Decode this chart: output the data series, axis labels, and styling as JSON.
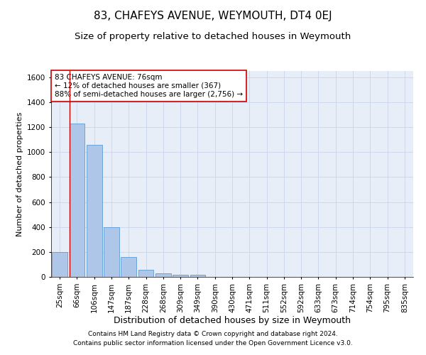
{
  "title": "83, CHAFEYS AVENUE, WEYMOUTH, DT4 0EJ",
  "subtitle": "Size of property relative to detached houses in Weymouth",
  "xlabel": "Distribution of detached houses by size in Weymouth",
  "ylabel": "Number of detached properties",
  "categories": [
    "25sqm",
    "66sqm",
    "106sqm",
    "147sqm",
    "187sqm",
    "228sqm",
    "268sqm",
    "309sqm",
    "349sqm",
    "390sqm",
    "430sqm",
    "471sqm",
    "511sqm",
    "552sqm",
    "592sqm",
    "633sqm",
    "673sqm",
    "714sqm",
    "754sqm",
    "795sqm",
    "835sqm"
  ],
  "values": [
    200,
    1230,
    1060,
    400,
    160,
    55,
    30,
    18,
    15,
    0,
    0,
    0,
    0,
    0,
    0,
    0,
    0,
    0,
    0,
    0,
    0
  ],
  "bar_color": "#aec6e8",
  "bar_edge_color": "#5b9bd5",
  "highlight_line_color": "#cc0000",
  "annotation_text": "83 CHAFEYS AVENUE: 76sqm\n← 12% of detached houses are smaller (367)\n88% of semi-detached houses are larger (2,756) →",
  "annotation_box_color": "#ffffff",
  "annotation_box_edge_color": "#cc0000",
  "ylim": [
    0,
    1650
  ],
  "yticks": [
    0,
    200,
    400,
    600,
    800,
    1000,
    1200,
    1400,
    1600
  ],
  "footer_line1": "Contains HM Land Registry data © Crown copyright and database right 2024.",
  "footer_line2": "Contains public sector information licensed under the Open Government Licence v3.0.",
  "background_color": "#ffffff",
  "plot_bg_color": "#e8eef8",
  "grid_color": "#c8d4e8",
  "title_fontsize": 11,
  "subtitle_fontsize": 9.5,
  "ylabel_fontsize": 8,
  "xlabel_fontsize": 9,
  "tick_fontsize": 7.5,
  "annotation_fontsize": 7.5,
  "footer_fontsize": 6.5
}
